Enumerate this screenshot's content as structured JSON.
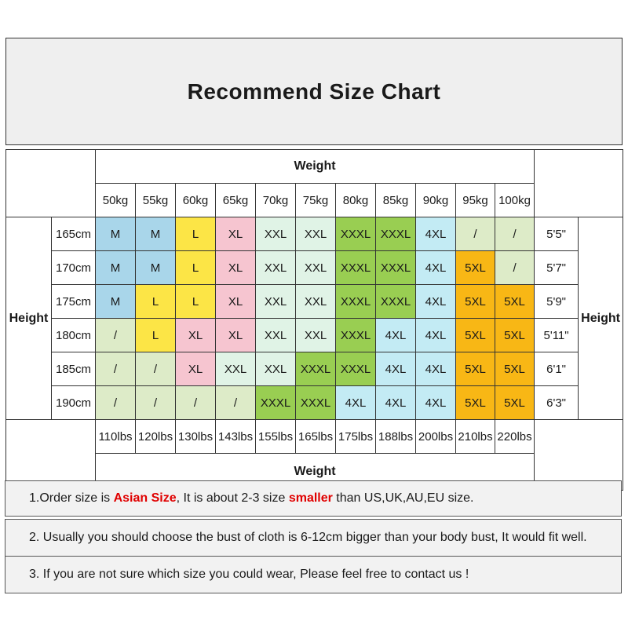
{
  "page": {
    "title": "Recommend Size Chart"
  },
  "size_table": {
    "weight_header_top": "Weight",
    "weight_header_bottom": "Weight",
    "height_label_left": "Height",
    "height_label_right": "Height",
    "weights_kg": [
      "50kg",
      "55kg",
      "60kg",
      "65kg",
      "70kg",
      "75kg",
      "80kg",
      "85kg",
      "90kg",
      "95kg",
      "100kg"
    ],
    "weights_lbs": [
      "110lbs",
      "120lbs",
      "130lbs",
      "143lbs",
      "155lbs",
      "165lbs",
      "175lbs",
      "188lbs",
      "200lbs",
      "210lbs",
      "220lbs"
    ],
    "rows": [
      {
        "height_cm": "165cm",
        "sizes": [
          "M",
          "M",
          "L",
          "XL",
          "XXL",
          "XXL",
          "XXXL",
          "XXXL",
          "4XL",
          "/",
          "/"
        ],
        "height_ft": "5'5\""
      },
      {
        "height_cm": "170cm",
        "sizes": [
          "M",
          "M",
          "L",
          "XL",
          "XXL",
          "XXL",
          "XXXL",
          "XXXL",
          "4XL",
          "5XL",
          "/"
        ],
        "height_ft": "5'7\""
      },
      {
        "height_cm": "175cm",
        "sizes": [
          "M",
          "L",
          "L",
          "XL",
          "XXL",
          "XXL",
          "XXXL",
          "XXXL",
          "4XL",
          "5XL",
          "5XL"
        ],
        "height_ft": "5'9\""
      },
      {
        "height_cm": "180cm",
        "sizes": [
          "/",
          "L",
          "XL",
          "XL",
          "XXL",
          "XXL",
          "XXXL",
          "4XL",
          "4XL",
          "5XL",
          "5XL"
        ],
        "height_ft": "5'11\""
      },
      {
        "height_cm": "185cm",
        "sizes": [
          "/",
          "/",
          "XL",
          "XXL",
          "XXL",
          "XXXL",
          "XXXL",
          "4XL",
          "4XL",
          "5XL",
          "5XL"
        ],
        "height_ft": "6'1\""
      },
      {
        "height_cm": "190cm",
        "sizes": [
          "/",
          "/",
          "/",
          "/",
          "XXXL",
          "XXXL",
          "4XL",
          "4XL",
          "4XL",
          "5XL",
          "5XL"
        ],
        "height_ft": "6'3\""
      }
    ],
    "size_colors": {
      "M": "#a9d6ea",
      "L": "#fce546",
      "XL": "#f6c5d0",
      "XXL": "#e0f3e6",
      "XXXL": "#99ce52",
      "4XL": "#c3ebf4",
      "5XL": "#f8b715",
      "/": "#ddebc8"
    }
  },
  "notes": [
    {
      "segments": [
        {
          "text": "1.Order size is ",
          "red": false
        },
        {
          "text": "Asian Size",
          "red": true
        },
        {
          "text": ", It is about 2-3 size ",
          "red": false
        },
        {
          "text": "smaller",
          "red": true
        },
        {
          "text": " than US,UK,AU,EU size.",
          "red": false
        }
      ]
    },
    {
      "segments": [
        {
          "text": "2. Usually you should choose the bust of cloth is 6-12cm bigger than your body bust, It would fit well.",
          "red": false
        }
      ]
    },
    {
      "segments": [
        {
          "text": "3. If you are not sure which size you could wear, Please feel free to contact us !",
          "red": false
        }
      ]
    }
  ],
  "colors": {
    "red_text": "#e00000",
    "title_bg": "#efefef",
    "note_bg": "#f2f2f2"
  }
}
